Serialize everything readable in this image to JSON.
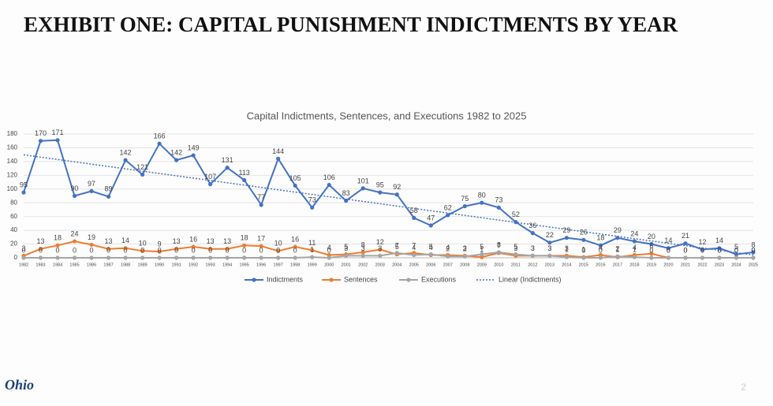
{
  "slide": {
    "title": "EXHIBIT ONE: CAPITAL PUNISHMENT INDICTMENTS BY YEAR",
    "logo": "Ohio",
    "page_number": "2"
  },
  "chart_data": {
    "type": "line",
    "title": "Capital Indictments, Sentences, and Executions 1982 to 2025",
    "categories": [
      "1982",
      "1983",
      "1984",
      "1985",
      "1986",
      "1987",
      "1988",
      "1989",
      "1990",
      "1991",
      "1992",
      "1993",
      "1994",
      "1995",
      "1996",
      "1997",
      "1998",
      "1999",
      "2000",
      "2001",
      "2002",
      "2003",
      "2004",
      "2005",
      "2006",
      "2007",
      "2008",
      "2009",
      "2010",
      "2011",
      "2012",
      "2013",
      "2014",
      "2015",
      "2016",
      "2017",
      "2018",
      "2019",
      "2020",
      "2021",
      "2022",
      "2023",
      "2024",
      "2025"
    ],
    "series": [
      {
        "name": "Indictments",
        "color": "#4472c4",
        "trendline": {
          "type": "linear",
          "name": "Linear (Indictments)"
        },
        "values": [
          95,
          170,
          171,
          90,
          97,
          89,
          142,
          121,
          166,
          142,
          149,
          107,
          131,
          113,
          77,
          144,
          105,
          73,
          106,
          83,
          101,
          95,
          92,
          58,
          47,
          62,
          75,
          80,
          73,
          52,
          36,
          22,
          29,
          26,
          18,
          29,
          24,
          20,
          14,
          21,
          12,
          14,
          5,
          8
        ]
      },
      {
        "name": "Sentences",
        "color": "#ed7d31",
        "values": [
          3,
          13,
          18,
          24,
          19,
          13,
          14,
          10,
          9,
          13,
          16,
          13,
          13,
          18,
          17,
          10,
          16,
          11,
          4,
          5,
          8,
          12,
          5,
          7,
          4,
          4,
          3,
          1,
          7,
          3,
          3,
          3,
          3,
          1,
          4,
          1,
          4,
          6,
          0,
          0,
          0,
          0,
          0,
          0
        ]
      },
      {
        "name": "Executions",
        "color": "#a5a5a5",
        "values": [
          0,
          0,
          0,
          0,
          0,
          0,
          0,
          0,
          0,
          0,
          0,
          0,
          0,
          0,
          0,
          0,
          0,
          1,
          0,
          3,
          3,
          3,
          7,
          4,
          5,
          2,
          2,
          5,
          8,
          5,
          3,
          3,
          1,
          0,
          0,
          2,
          1,
          0,
          0,
          0,
          0,
          0,
          0,
          0
        ]
      }
    ],
    "ylim": [
      0,
      180
    ],
    "yticks": [
      0,
      20,
      40,
      60,
      80,
      100,
      120,
      140,
      160,
      180
    ],
    "grid": true,
    "legend": "bottom"
  }
}
